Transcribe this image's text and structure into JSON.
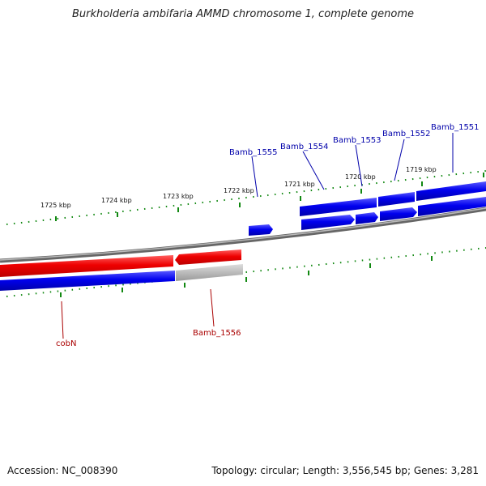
{
  "title": "Burkholderia ambifaria AMMD chromosome 1, complete genome",
  "footer": {
    "accession": "Accession: NC_008390",
    "topology": "Topology: circular; Length: 3,556,545 bp; Genes: 3,281"
  },
  "colors": {
    "forward": "#0000dd",
    "reverse": "#ee0000",
    "pseudo": "#bbbbbb",
    "backbone": "#888888",
    "tick": "#118811",
    "label_forward": "#0000aa",
    "label_reverse": "#aa0000"
  },
  "scale_ticks": [
    {
      "label": "1725 kbp"
    },
    {
      "label": "1724 kbp"
    },
    {
      "label": "1723 kbp"
    },
    {
      "label": "1722 kbp"
    },
    {
      "label": "1721 kbp"
    },
    {
      "label": "1720 kbp"
    },
    {
      "label": "1719 kbp"
    }
  ],
  "genes": [
    {
      "name": "Bamb_1555",
      "strand": "forward"
    },
    {
      "name": "Bamb_1554",
      "strand": "forward"
    },
    {
      "name": "Bamb_1553",
      "strand": "forward"
    },
    {
      "name": "Bamb_1552",
      "strand": "forward"
    },
    {
      "name": "Bamb_1551",
      "strand": "forward"
    },
    {
      "name": "cobN",
      "strand": "reverse"
    },
    {
      "name": "Bamb_1556",
      "strand": "reverse"
    }
  ]
}
